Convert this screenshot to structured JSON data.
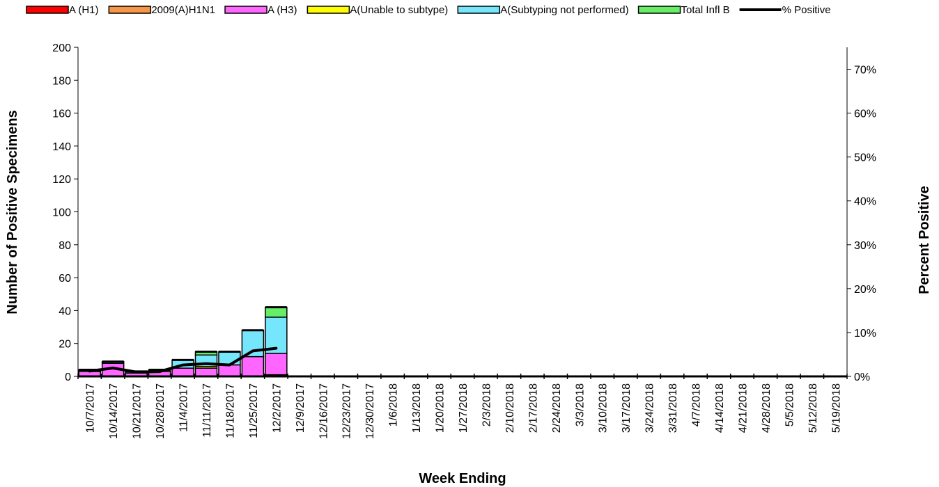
{
  "chart_data": {
    "type": "bar",
    "stacked": true,
    "xlabel": "Week Ending",
    "ylabel": "Number of  Positive Specimens",
    "y2label": "Percent Positive",
    "ylim": [
      0,
      200
    ],
    "y2lim": [
      0,
      75
    ],
    "yticks": [
      "0",
      "20",
      "40",
      "60",
      "80",
      "100",
      "120",
      "140",
      "160",
      "180",
      "200"
    ],
    "y2ticks": [
      "0%",
      "10%",
      "20%",
      "30%",
      "40%",
      "50%",
      "60%",
      "70%"
    ],
    "legend_position": "top",
    "categories": [
      "10/7/2017",
      "10/14/2017",
      "10/21/2017",
      "10/28/2017",
      "11/4/2017",
      "11/11/2017",
      "11/18/2017",
      "11/25/2017",
      "12/2/2017",
      "12/9/2017",
      "12/16/2017",
      "12/23/2017",
      "12/30/2017",
      "1/6/2018",
      "1/13/2018",
      "1/20/2018",
      "1/27/2018",
      "2/3/2018",
      "2/10/2018",
      "2/17/2018",
      "2/24/2018",
      "3/3/2018",
      "3/10/2018",
      "3/17/2018",
      "3/24/2018",
      "3/31/2018",
      "4/7/2018",
      "4/14/2018",
      "4/21/2018",
      "4/28/2018",
      "5/5/2018",
      "5/12/2018",
      "5/19/2018"
    ],
    "series": [
      {
        "name": "A (H1)",
        "color": "#ff0000",
        "values": [
          0,
          0,
          0,
          0,
          0,
          0,
          0,
          0,
          1,
          0,
          0,
          0,
          0,
          0,
          0,
          0,
          0,
          0,
          0,
          0,
          0,
          0,
          0,
          0,
          0,
          0,
          0,
          0,
          0,
          0,
          0,
          0,
          0
        ]
      },
      {
        "name": "2009(A)H1N1",
        "color": "#f79646",
        "values": [
          0,
          0,
          0,
          0,
          0,
          0,
          0,
          0,
          0,
          0,
          0,
          0,
          0,
          0,
          0,
          0,
          0,
          0,
          0,
          0,
          0,
          0,
          0,
          0,
          0,
          0,
          0,
          0,
          0,
          0,
          0,
          0,
          0
        ]
      },
      {
        "name": "A (H3)",
        "color": "#ff66ff",
        "values": [
          3,
          8,
          2,
          3,
          5,
          5,
          7,
          12,
          13,
          0,
          0,
          0,
          0,
          0,
          0,
          0,
          0,
          0,
          0,
          0,
          0,
          0,
          0,
          0,
          0,
          0,
          0,
          0,
          0,
          0,
          0,
          0,
          0
        ]
      },
      {
        "name": "A(Unable to subtype)",
        "color": "#ffff00",
        "values": [
          0,
          0,
          0,
          0,
          0,
          1,
          0,
          0,
          0,
          0,
          0,
          0,
          0,
          0,
          0,
          0,
          0,
          0,
          0,
          0,
          0,
          0,
          0,
          0,
          0,
          0,
          0,
          0,
          0,
          0,
          0,
          0,
          0
        ]
      },
      {
        "name": "A(Subtyping not performed)",
        "color": "#75e6fb",
        "values": [
          1,
          1,
          1,
          1,
          5,
          7,
          8,
          16,
          22,
          0,
          0,
          0,
          0,
          0,
          0,
          0,
          0,
          0,
          0,
          0,
          0,
          0,
          0,
          0,
          0,
          0,
          0,
          0,
          0,
          0,
          0,
          0,
          0
        ]
      },
      {
        "name": "Total Infl B",
        "color": "#66ee66",
        "values": [
          0,
          0,
          0,
          0,
          0,
          2,
          0,
          0,
          6,
          0,
          0,
          0,
          0,
          0,
          0,
          0,
          0,
          0,
          0,
          0,
          0,
          0,
          0,
          0,
          0,
          0,
          0,
          0,
          0,
          0,
          0,
          0,
          0
        ]
      }
    ],
    "line_series": {
      "name": "% Positive",
      "color": "#000000",
      "axis": "right",
      "values": [
        1.2,
        1.9,
        1.0,
        1.1,
        2.6,
        2.9,
        2.6,
        5.8,
        6.4
      ]
    }
  }
}
